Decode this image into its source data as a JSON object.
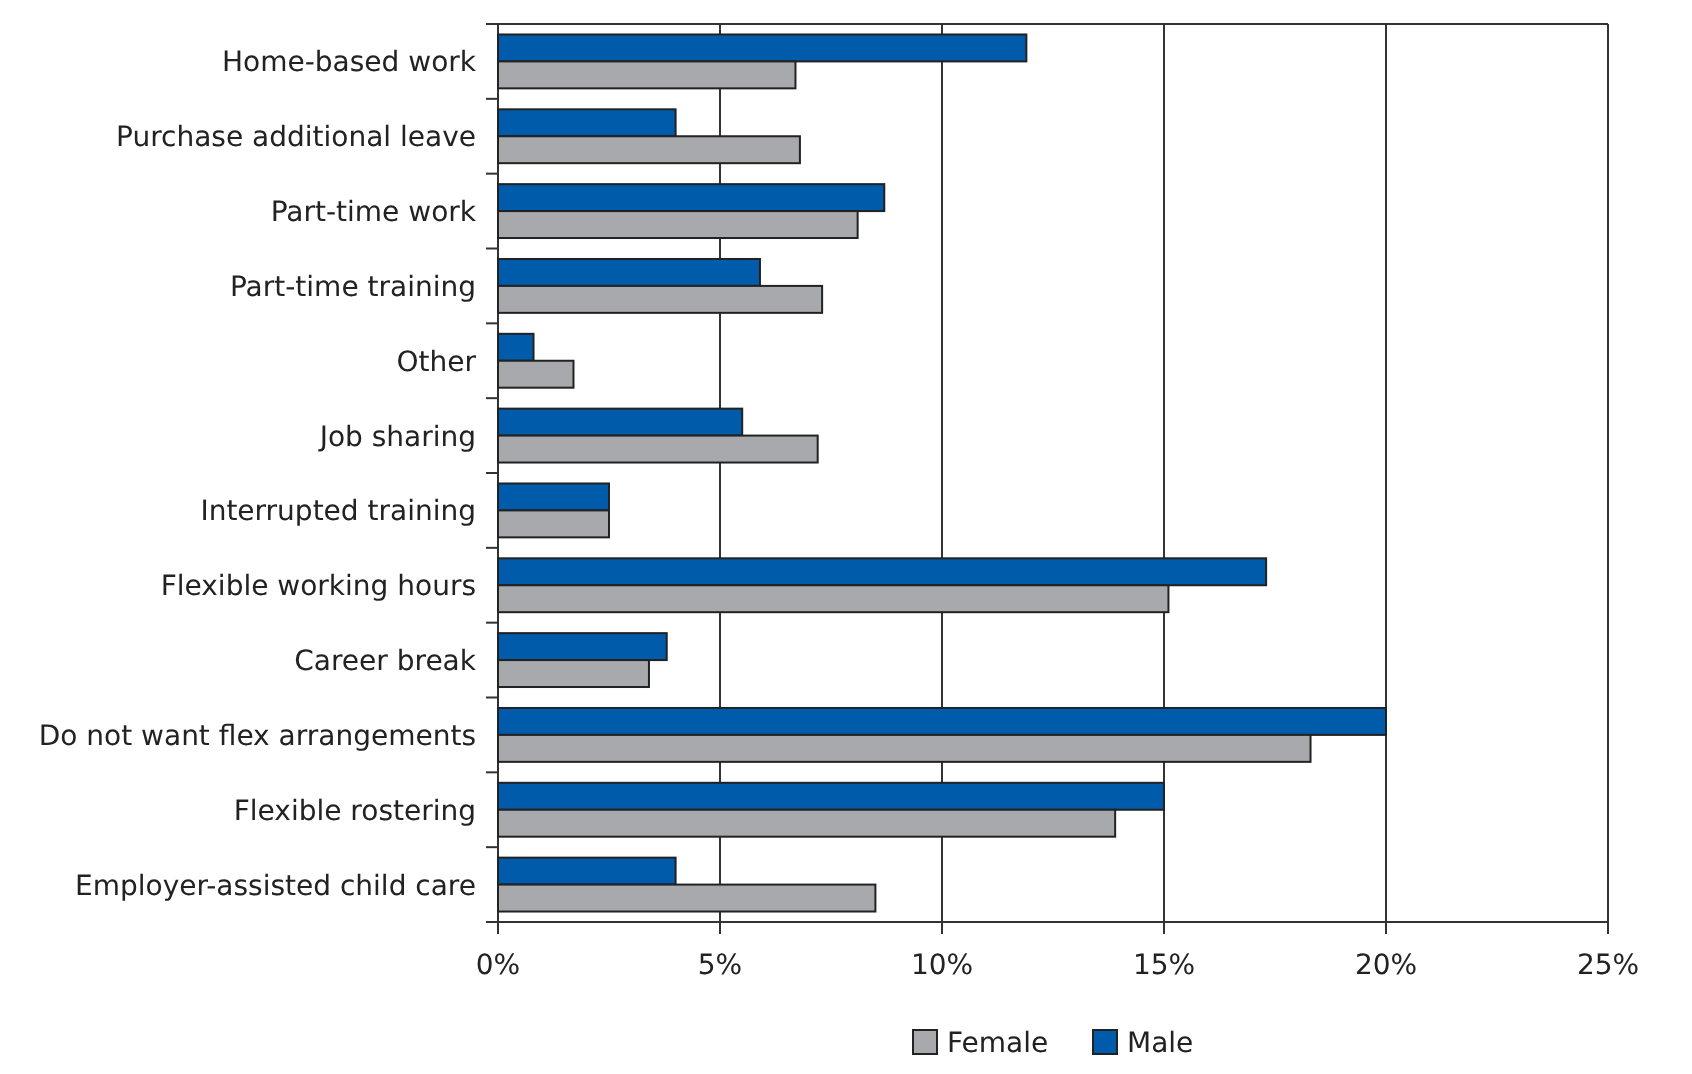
{
  "chart_data": {
    "type": "bar",
    "orientation": "horizontal",
    "categories": [
      "Home-based work",
      "Purchase additional leave",
      "Part-time work",
      "Part-time training",
      "Other",
      "Job sharing",
      "Interrupted training",
      "Flexible working hours",
      "Career break",
      "Do not want flex arrangements",
      "Flexible rostering",
      "Employer-assisted child care"
    ],
    "series": [
      {
        "name": "Male",
        "color": "#005baa",
        "values": [
          11.9,
          4.0,
          8.7,
          5.9,
          0.8,
          5.5,
          2.5,
          17.3,
          3.8,
          20.0,
          15.0,
          4.0
        ]
      },
      {
        "name": "Female",
        "color": "#a7a9ac",
        "values": [
          6.7,
          6.8,
          8.1,
          7.3,
          1.7,
          7.2,
          2.5,
          15.1,
          3.4,
          18.3,
          13.9,
          8.5
        ]
      }
    ],
    "xlim": [
      0,
      25
    ],
    "xticks": [
      {
        "value": 0,
        "label": "0%"
      },
      {
        "value": 5,
        "label": "5%"
      },
      {
        "value": 10,
        "label": "10%"
      },
      {
        "value": 15,
        "label": "15%"
      },
      {
        "value": 20,
        "label": "20%"
      },
      {
        "value": 25,
        "label": "25%"
      }
    ],
    "grid": "x",
    "legend": "bottom"
  }
}
